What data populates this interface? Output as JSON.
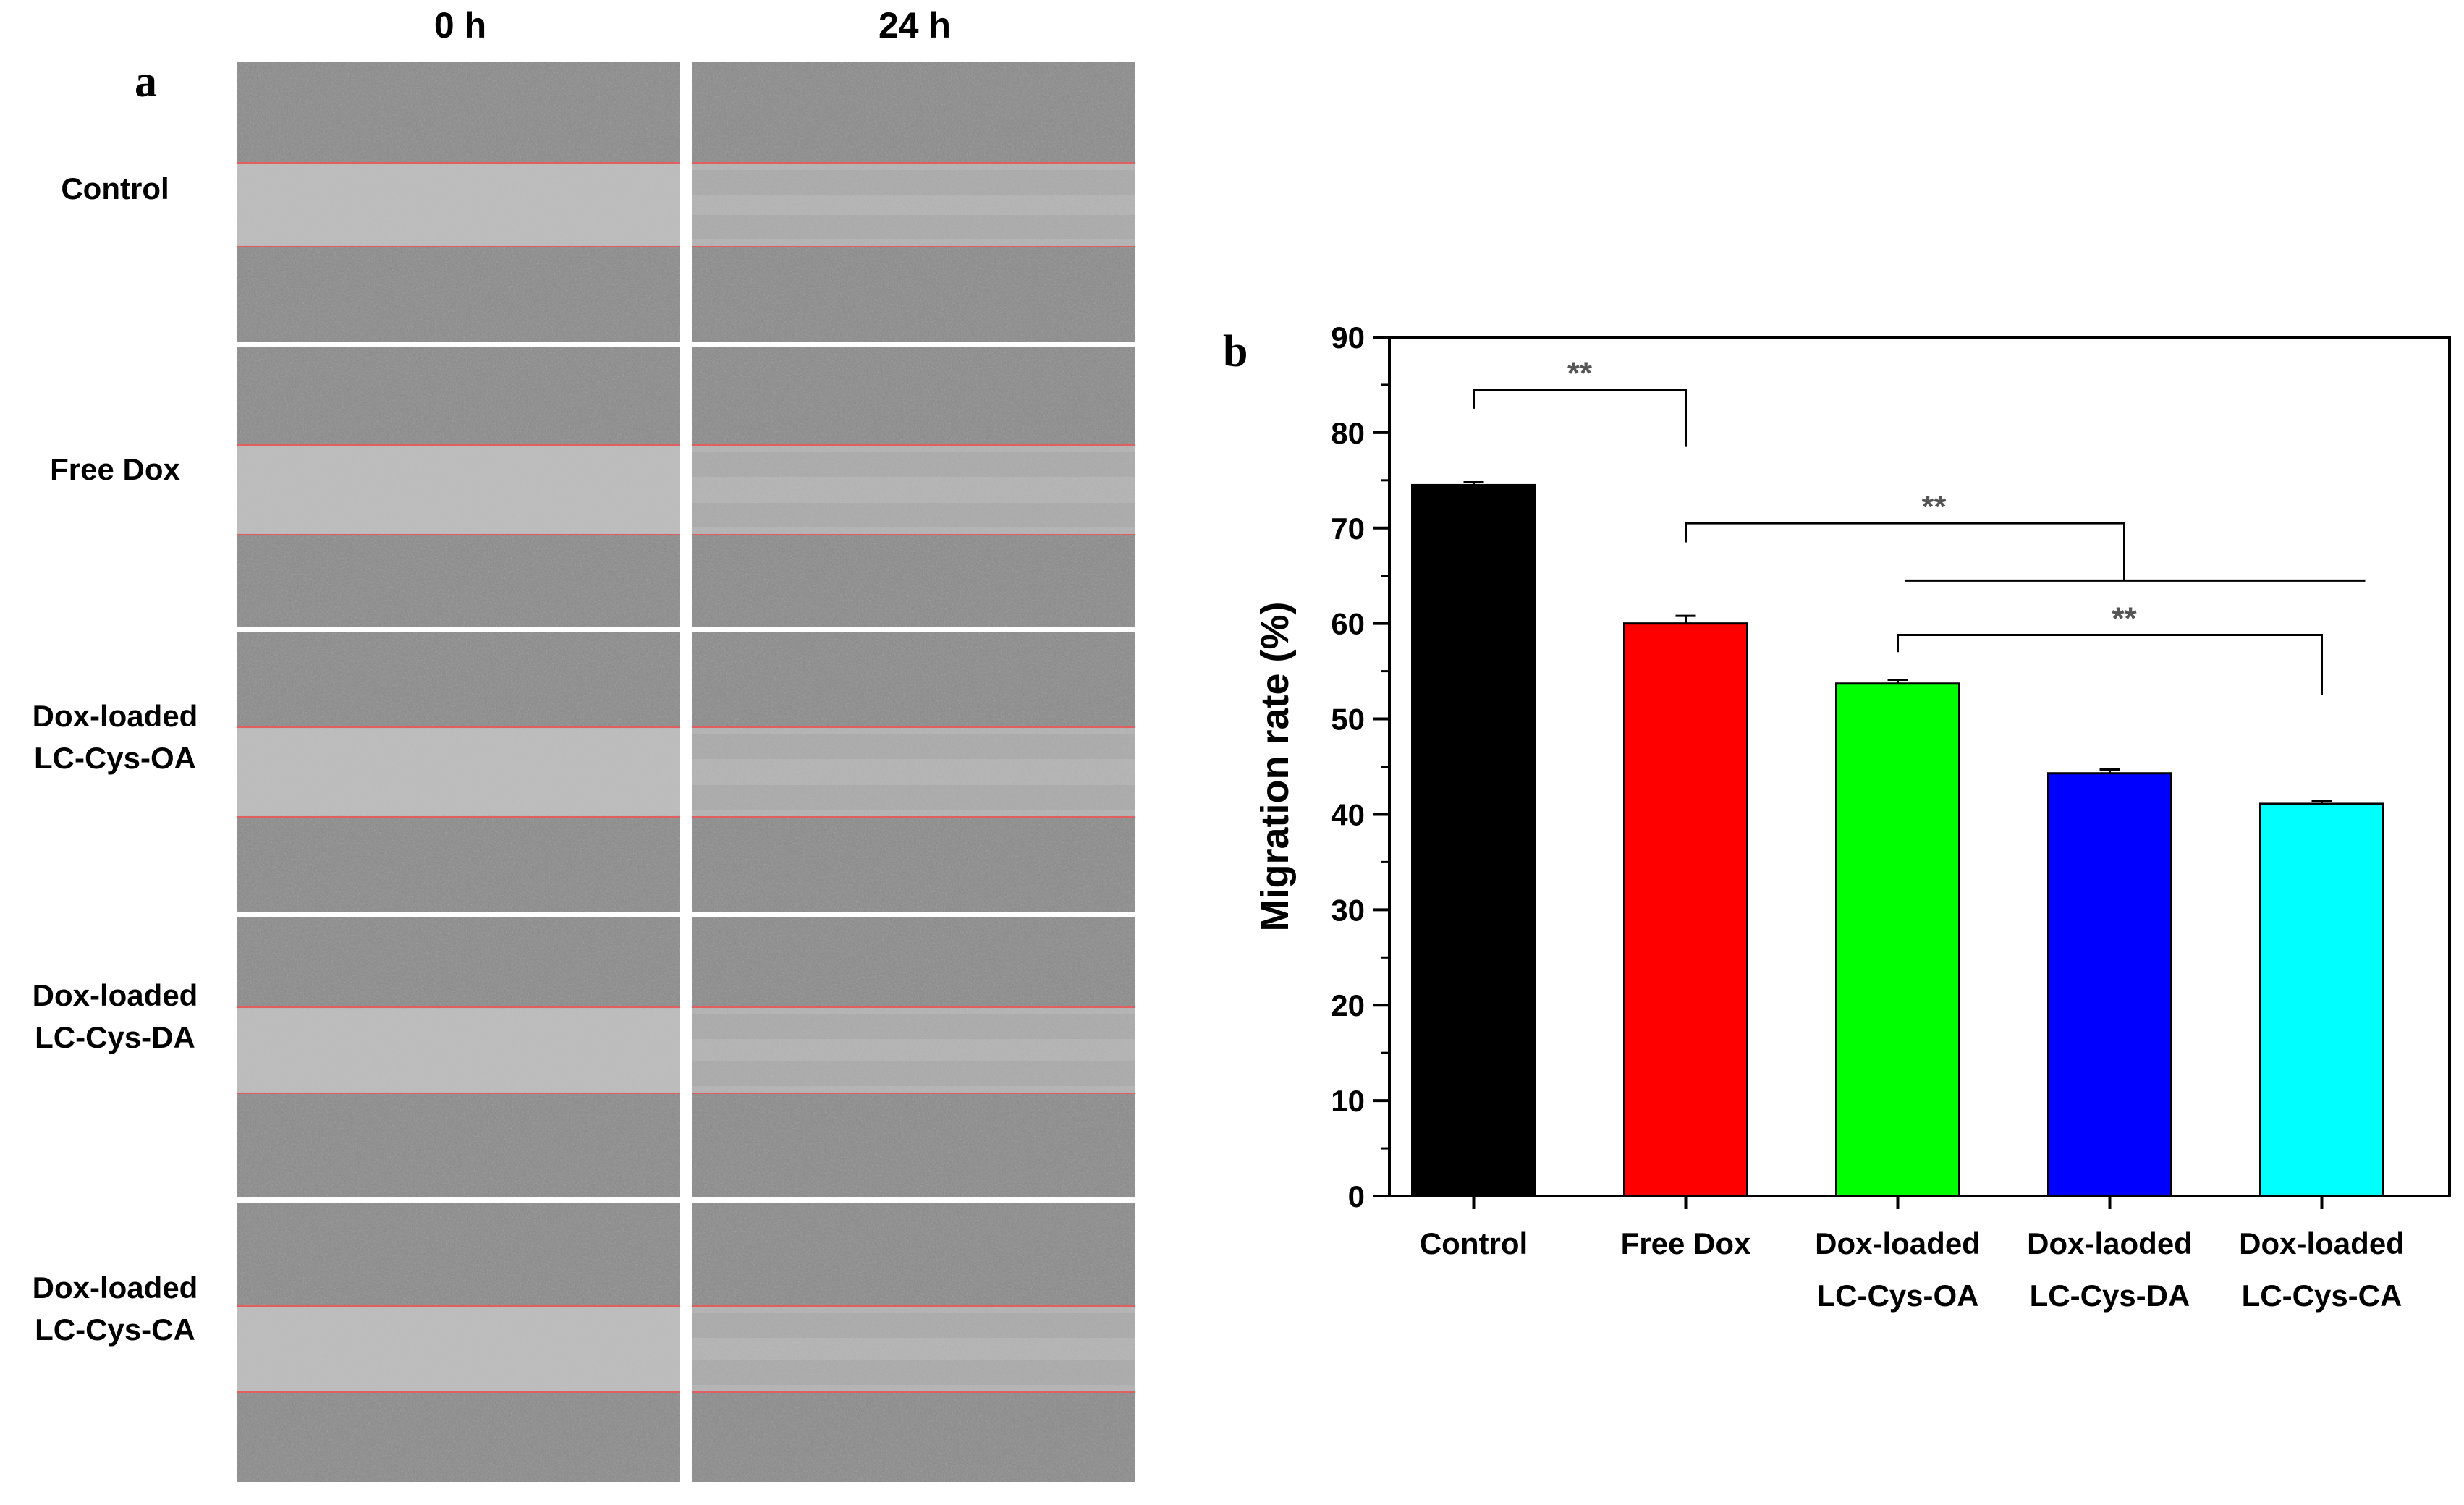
{
  "panel_a": {
    "letter": "a",
    "columns": [
      "0 h",
      "24 h"
    ],
    "rows": [
      {
        "lines": [
          "Control"
        ]
      },
      {
        "lines": [
          "Free Dox"
        ]
      },
      {
        "lines": [
          "Dox-loaded",
          "LC-Cys-OA"
        ]
      },
      {
        "lines": [
          "Dox-loaded",
          "LC-Cys-DA"
        ]
      },
      {
        "lines": [
          "Dox-loaded",
          "LC-Cys-CA"
        ]
      }
    ]
  },
  "panel_b": {
    "letter": "b"
  },
  "chart_data": {
    "type": "bar",
    "categories": [
      [
        "Control"
      ],
      [
        "Free Dox"
      ],
      [
        "Dox-loaded",
        "LC-Cys-OA"
      ],
      [
        "Dox-laoded",
        "LC-Cys-DA"
      ],
      [
        "Dox-loaded",
        "LC-Cys-CA"
      ]
    ],
    "values": [
      74.5,
      60.0,
      53.7,
      44.3,
      41.1
    ],
    "errors": [
      0.3,
      0.8,
      0.4,
      0.4,
      0.3
    ],
    "colors": [
      "#000000",
      "#ff0000",
      "#00ff00",
      "#0000ff",
      "#00ffff"
    ],
    "ylabel": "Migration rate (%)",
    "ylim": [
      0,
      90
    ],
    "yticks": [
      "0",
      "10",
      "20",
      "30",
      "40",
      "50",
      "60",
      "70",
      "80",
      "90"
    ],
    "significance": [
      {
        "label": "**",
        "from": 0,
        "to": 1
      },
      {
        "label": "**",
        "from": 1,
        "to": [
          2,
          4
        ]
      },
      {
        "label": "**",
        "from": 2,
        "to": 4
      }
    ]
  }
}
